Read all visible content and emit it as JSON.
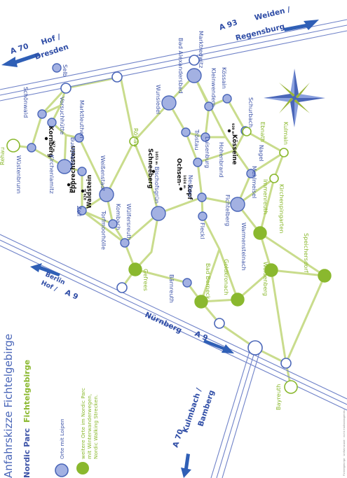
{
  "title": "Anfahrskizze Fichtelgebirge",
  "subtitle_blue": "Nordic Parc",
  "subtitle_green": "Fichtelgebirge",
  "legend": {
    "blue": "Orte mit Loipen",
    "green_line1": "weitere Orte im Nordic Parc",
    "green_line2": "mit Winterwanderwegen,",
    "green_line3": "Nordic Walking Strecken."
  },
  "highways": {
    "a93_num": "A 93",
    "a93_dest1": "Weiden /",
    "a93_dest2": "Regensburg",
    "a70_hof_num": "A 70",
    "a70_hof_dest1": "Hof /",
    "a70_hof_dest2": "Dresden",
    "a9_hof_num": "A 9",
    "a9_hof_dest1": "Hof /",
    "a9_hof_dest2": "Berlin",
    "a9_nbg_num": "A 9",
    "a9_nbg_dest": "Nürnberg",
    "a70_kul_num": "A 70",
    "a70_kul_dest1": "Kulmbach /",
    "a70_kul_dest2": "Bamberg"
  },
  "peaks": {
    "kornberg": "Kornberg",
    "kornberg_elev": "827 m",
    "epprechtstein": "Epprechtstein",
    "epprechtstein_elev": "798 m",
    "waldstein": "Waldstein",
    "waldstein_elev": "879 m",
    "schneeberg": "Schneeberg",
    "schneeberg_elev": "1051 m",
    "ochsenkopf1": "Ochsen-",
    "ochsenkopf2": "kopf",
    "ochsenkopf_elev": "1024 m",
    "koesseine": "Kösseine",
    "koesseine_elev": "939 m"
  },
  "places_blue": [
    "Selb",
    "Schönwald",
    "Vorsuchhütte",
    "Wüstenbrunn",
    "Kirchenlamitz",
    "Buchhaus",
    "Marktleuthen",
    "Weißenstadt",
    "Zell",
    "Kombach",
    "Torfmoorhölle",
    "Wülfersreuth",
    "Bischofsgrün",
    "Wunsiedel",
    "Bad Alexandersbad",
    "Marktredwitz",
    "Kleinwendern",
    "Kössain",
    "Tröstau",
    "Luisenburg",
    "Hohenbrand",
    "Neubau",
    "Fleckl",
    "Fichtelberg",
    "Nagel",
    "Mehlmeisel",
    "Schurbach",
    "Bärnreuth",
    "Warmensteinach"
  ],
  "places_green": [
    "Rehau",
    "Röslau",
    "Ebnath",
    "Kulmain",
    "Immenreuth",
    "Kirchenpingarten",
    "Gefrees",
    "Bad Berneck",
    "Goldkronach",
    "Weidenberg",
    "Speichersdorf",
    "Bayreuth"
  ],
  "colors": {
    "blue": "#4a66b8",
    "blue_fill": "#a3b1e2",
    "green": "#8ab82e",
    "road": "#c9dc8c",
    "motorway": "#6f82c8"
  },
  "footer": "Fichtelgebirge · Anfahrskizze · nicht maßstabsgetreu"
}
